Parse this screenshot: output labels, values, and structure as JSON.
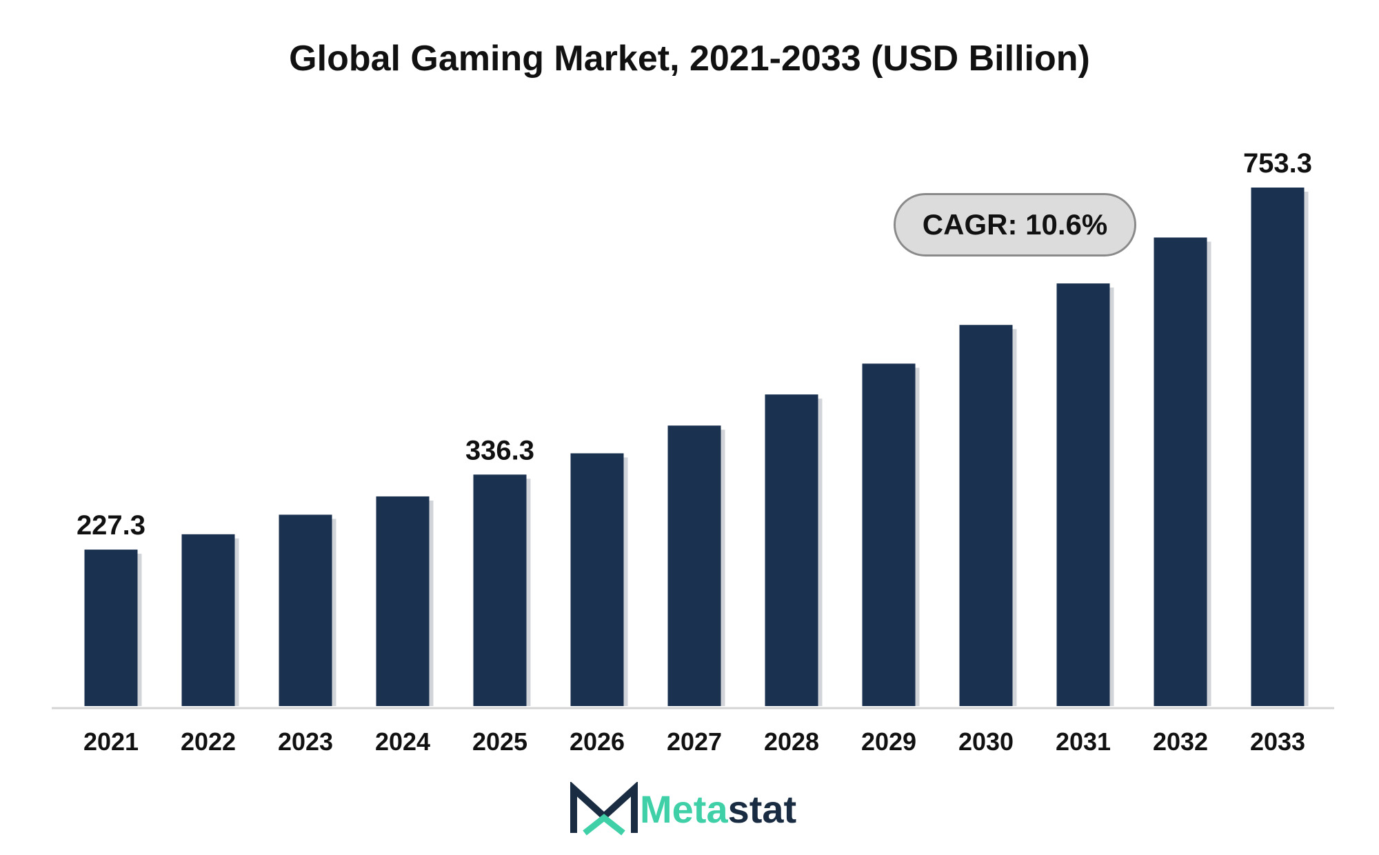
{
  "chart_data": {
    "type": "bar",
    "title": "Global Gaming Market, 2021-2033 (USD Billion)",
    "xlabel": "",
    "ylabel": "",
    "categories": [
      "2021",
      "2022",
      "2023",
      "2024",
      "2025",
      "2026",
      "2027",
      "2028",
      "2029",
      "2030",
      "2031",
      "2032",
      "2033"
    ],
    "values": [
      227.3,
      249.6,
      278.0,
      304.6,
      336.3,
      367.2,
      407.5,
      452.7,
      497.5,
      553.7,
      614.0,
      680.7,
      753.3
    ],
    "data_labels": [
      {
        "category": "2021",
        "text": "227.3"
      },
      {
        "category": "2025",
        "text": "336.3"
      },
      {
        "category": "2033",
        "text": "753.3"
      }
    ],
    "ylim": [
      0,
      800
    ],
    "grid": false,
    "bar_color": "#1a3150",
    "annotation": "CAGR: 10.6%"
  },
  "brand": {
    "name_part1": "Meta",
    "name_part2": "stat",
    "accent_color": "#3fd0a8",
    "dark_color": "#1a2c42",
    "logo_icon": "m-logo-icon"
  }
}
